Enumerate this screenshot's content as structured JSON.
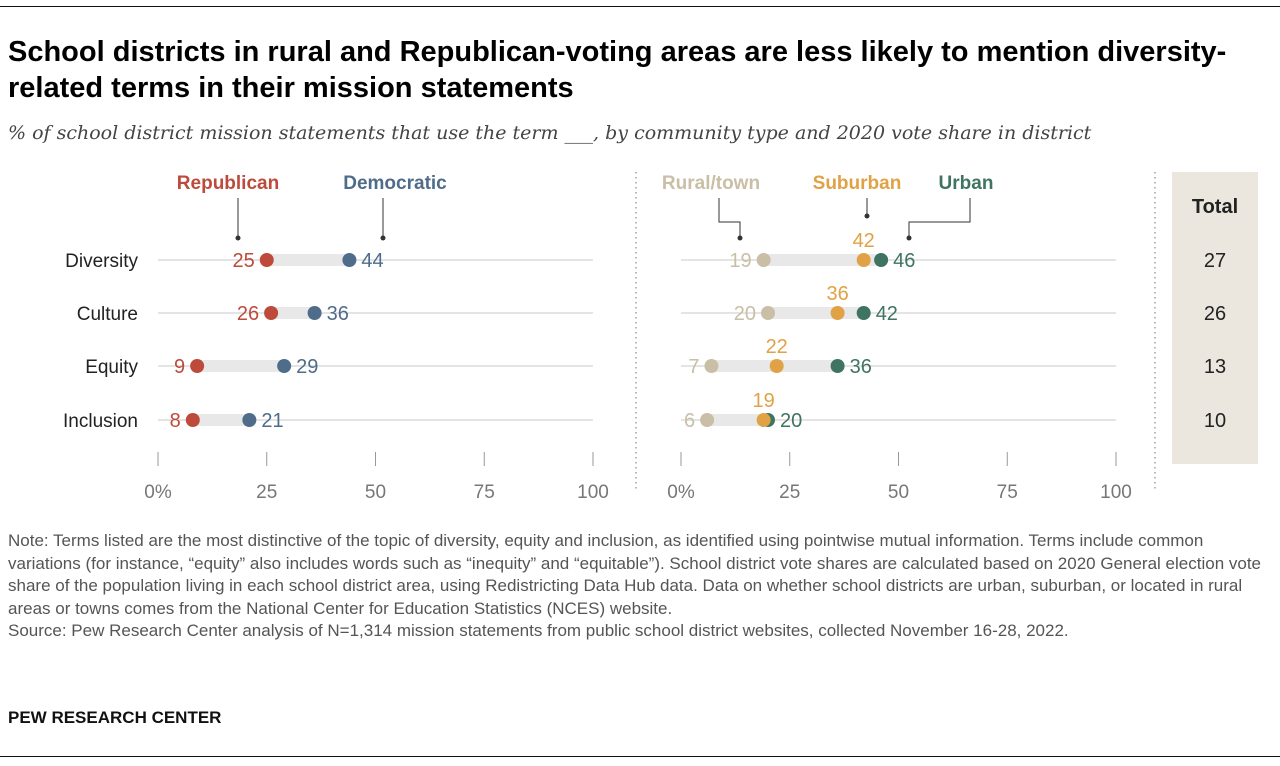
{
  "title": "School districts in rural and Republican-voting areas are less likely to mention diversity-related terms in their mission statements",
  "subtitle": "% of school district mission statements that use the term ___, by community type and 2020 vote share in district",
  "note": "Note: Terms listed are the most distinctive of the topic of diversity, equity and inclusion, as identified using pointwise mutual information. Terms include common variations (for instance, “equity” also includes words such as “inequity” and “equitable”). School district vote shares are calculated based on 2020 General election vote share of the population living in each school district area, using Redistricting Data Hub data. Data on whether school districts are urban, suburban, or located in rural areas or towns comes from the National Center for Education Statistics (NCES) website.",
  "source": "Source: Pew Research Center analysis of N=1,314 mission statements from public school district websites, collected November 16-28, 2022.",
  "brand": "PEW RESEARCH CENTER",
  "colors": {
    "Republican": "#bd4a3b",
    "Democratic": "#4f6c8a",
    "Rural/town": "#c9bea6",
    "Suburban": "#e0a245",
    "Urban": "#3e7461",
    "track": "#e8e8e8",
    "gridline": "#c8c8c8",
    "axis_text": "#777777",
    "total_bg": "#ebe7de"
  },
  "chart_data": [
    {
      "type": "dot",
      "name": "partisan",
      "categories": [
        "Diversity",
        "Culture",
        "Equity",
        "Inclusion"
      ],
      "xlim": [
        0,
        100
      ],
      "xticks": [
        0,
        25,
        50,
        75,
        100
      ],
      "xtick_labels": [
        "0%",
        "25",
        "50",
        "75",
        "100"
      ],
      "series": [
        {
          "name": "Republican",
          "values": [
            25,
            26,
            9,
            8
          ]
        },
        {
          "name": "Democratic",
          "values": [
            44,
            36,
            29,
            21
          ]
        }
      ]
    },
    {
      "type": "dot",
      "name": "community",
      "categories": [
        "Diversity",
        "Culture",
        "Equity",
        "Inclusion"
      ],
      "xlim": [
        0,
        100
      ],
      "xticks": [
        0,
        25,
        50,
        75,
        100
      ],
      "xtick_labels": [
        "0%",
        "25",
        "50",
        "75",
        "100"
      ],
      "series": [
        {
          "name": "Rural/town",
          "values": [
            19,
            20,
            7,
            6
          ]
        },
        {
          "name": "Suburban",
          "values": [
            42,
            36,
            22,
            19
          ]
        },
        {
          "name": "Urban",
          "values": [
            46,
            42,
            36,
            20
          ]
        }
      ]
    },
    {
      "type": "table",
      "name": "total",
      "header": "Total",
      "values": [
        27,
        26,
        13,
        10
      ]
    }
  ]
}
